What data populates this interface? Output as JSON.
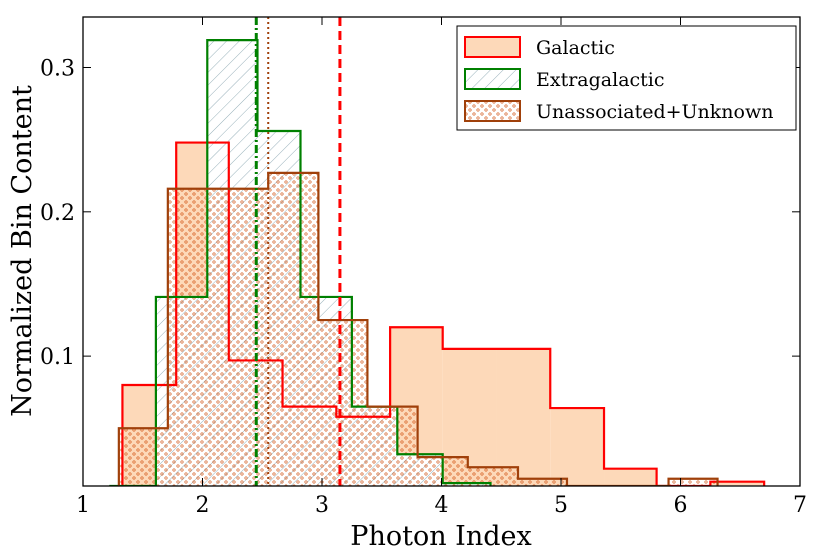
{
  "chart_data": {
    "type": "histogram",
    "xlabel": "Photon Index",
    "ylabel": "Normalized Bin Content",
    "xlim": [
      1,
      7
    ],
    "ylim": [
      0.01,
      0.335
    ],
    "xticks": [
      1,
      2,
      3,
      4,
      5,
      6,
      7
    ],
    "xtick_labels": [
      "1",
      "2",
      "3",
      "4",
      "5",
      "6",
      "7"
    ],
    "yticks": [
      0.1,
      0.2,
      0.3
    ],
    "ytick_labels": [
      "0.1",
      "0.2",
      "0.3"
    ],
    "legend_position": "top-right",
    "series": [
      {
        "name": "Galactic",
        "edges": [
          1.33,
          1.78,
          2.22,
          2.67,
          3.12,
          3.57,
          4.01,
          4.46,
          4.91,
          5.36,
          5.8,
          6.25,
          6.7
        ],
        "values": [
          0.08,
          0.248,
          0.097,
          0.065,
          0.058,
          0.12,
          0.105,
          0.105,
          0.064,
          0.022,
          0.0,
          0.013
        ],
        "edge_color": "#ff0000",
        "fill_color": "#fdd9b9",
        "style": "filled",
        "mean": 3.15,
        "mean_style": "dashed"
      },
      {
        "name": "Extragalactic",
        "edges": [
          1.22,
          1.61,
          2.04,
          2.46,
          2.82,
          3.25,
          3.63,
          4.01,
          4.41
        ],
        "values": [
          0.008,
          0.141,
          0.319,
          0.256,
          0.141,
          0.065,
          0.032,
          0.012
        ],
        "edge_color": "#008000",
        "style": "hatched",
        "mean": 2.45,
        "mean_style": "dash-dot"
      },
      {
        "name": "Unassociated+Unknown",
        "edges": [
          1.3,
          1.71,
          2.13,
          2.55,
          2.97,
          3.38,
          3.8,
          4.22,
          4.64,
          5.05,
          5.47,
          5.9,
          6.31
        ],
        "values": [
          0.05,
          0.216,
          0.216,
          0.227,
          0.125,
          0.065,
          0.03,
          0.023,
          0.015,
          0.004,
          0.002,
          0.015
        ],
        "edge_color": "#a0400a",
        "style": "dotted",
        "mean": 2.55,
        "mean_style": "dotted"
      }
    ]
  }
}
